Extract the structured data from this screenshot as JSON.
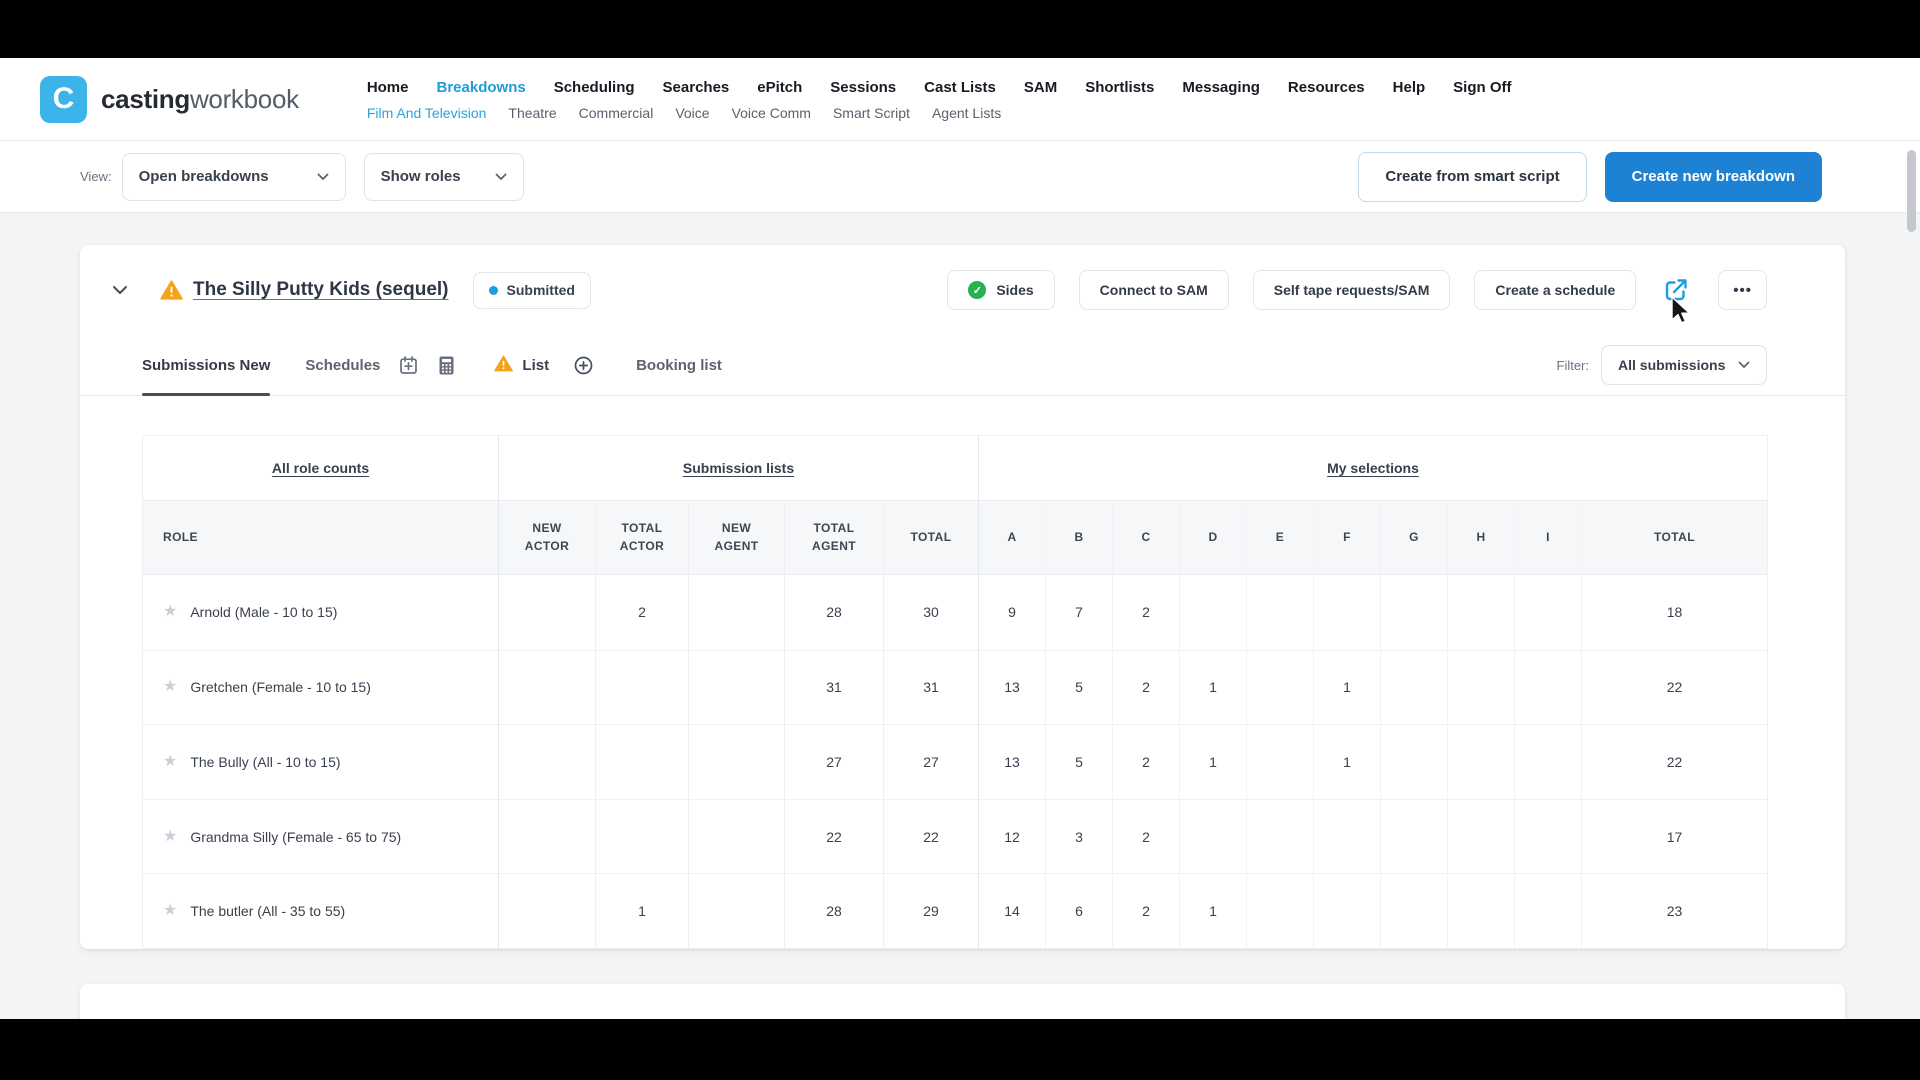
{
  "brand": {
    "logo_letter": "C",
    "name_bold": "casting",
    "name_light": "workbook"
  },
  "nav": {
    "primary": [
      {
        "label": "Home",
        "active": false
      },
      {
        "label": "Breakdowns",
        "active": true
      },
      {
        "label": "Scheduling",
        "active": false
      },
      {
        "label": "Searches",
        "active": false
      },
      {
        "label": "ePitch",
        "active": false
      },
      {
        "label": "Sessions",
        "active": false
      },
      {
        "label": "Cast Lists",
        "active": false
      },
      {
        "label": "SAM",
        "active": false
      },
      {
        "label": "Shortlists",
        "active": false
      },
      {
        "label": "Messaging",
        "active": false
      },
      {
        "label": "Resources",
        "active": false
      },
      {
        "label": "Help",
        "active": false
      },
      {
        "label": "Sign Off",
        "active": false
      }
    ],
    "secondary": [
      {
        "label": "Film And Television",
        "active": true
      },
      {
        "label": "Theatre",
        "active": false
      },
      {
        "label": "Commercial",
        "active": false
      },
      {
        "label": "Voice",
        "active": false
      },
      {
        "label": "Voice Comm",
        "active": false
      },
      {
        "label": "Smart Script",
        "active": false
      },
      {
        "label": "Agent Lists",
        "active": false
      }
    ]
  },
  "toolbar": {
    "view_label": "View:",
    "view_dropdown": "Open breakdowns",
    "roles_dropdown": "Show roles",
    "create_smart_script": "Create from smart script",
    "create_breakdown": "Create new breakdown"
  },
  "project": {
    "title": "The Silly Putty Kids (sequel)",
    "status": "Submitted",
    "actions": [
      {
        "label": "Sides",
        "icon": "check"
      },
      {
        "label": "Connect to SAM"
      },
      {
        "label": "Self tape requests/SAM"
      },
      {
        "label": "Create a schedule"
      }
    ],
    "more_label": "•••"
  },
  "tabs": {
    "items": [
      "Submissions New",
      "Schedules",
      "List",
      "Booking list"
    ],
    "filter_label": "Filter:",
    "filter_value": "All submissions"
  },
  "table": {
    "groups": [
      "All role counts",
      "Submission lists",
      "My selections"
    ],
    "role_header": "ROLE",
    "stat_headers": [
      "NEW ACTOR",
      "TOTAL ACTOR",
      "NEW AGENT",
      "TOTAL AGENT",
      "TOTAL"
    ],
    "letter_headers": [
      "A",
      "B",
      "C",
      "D",
      "E",
      "F",
      "G",
      "H",
      "I"
    ],
    "selection_total_header": "TOTAL",
    "rows": [
      {
        "role": "Arnold (Male - 10 to 15)",
        "new_actor": "",
        "total_actor": "2",
        "new_agent": "",
        "total_agent": "28",
        "total": "30",
        "selections": [
          "9",
          "7",
          "2",
          "",
          "",
          "",
          "",
          "",
          ""
        ],
        "selections_total": "18"
      },
      {
        "role": "Gretchen (Female - 10 to 15)",
        "new_actor": "",
        "total_actor": "",
        "new_agent": "",
        "total_agent": "31",
        "total": "31",
        "selections": [
          "13",
          "5",
          "2",
          "1",
          "",
          "1",
          "",
          "",
          ""
        ],
        "selections_total": "22"
      },
      {
        "role": "The Bully (All - 10 to 15)",
        "new_actor": "",
        "total_actor": "",
        "new_agent": "",
        "total_agent": "27",
        "total": "27",
        "selections": [
          "13",
          "5",
          "2",
          "1",
          "",
          "1",
          "",
          "",
          ""
        ],
        "selections_total": "22"
      },
      {
        "role": "Grandma Silly (Female - 65 to 75)",
        "new_actor": "",
        "total_actor": "",
        "new_agent": "",
        "total_agent": "22",
        "total": "22",
        "selections": [
          "12",
          "3",
          "2",
          "",
          "",
          "",
          "",
          "",
          ""
        ],
        "selections_total": "17"
      },
      {
        "role": "The butler (All - 35 to 55)",
        "new_actor": "",
        "total_actor": "1",
        "new_agent": "",
        "total_agent": "28",
        "total": "29",
        "selections": [
          "14",
          "6",
          "2",
          "1",
          "",
          "",
          "",
          "",
          ""
        ],
        "selections_total": "23"
      }
    ]
  },
  "icons": {
    "check": "✓",
    "star": "★"
  },
  "colors": {
    "accent_blue": "#1f9cd8",
    "button_blue": "#1e82d4",
    "logo_blue": "#3cb4ea",
    "status_blue": "#1f9ce2",
    "warning_orange": "#f2a41e",
    "success_green": "#27b151"
  }
}
